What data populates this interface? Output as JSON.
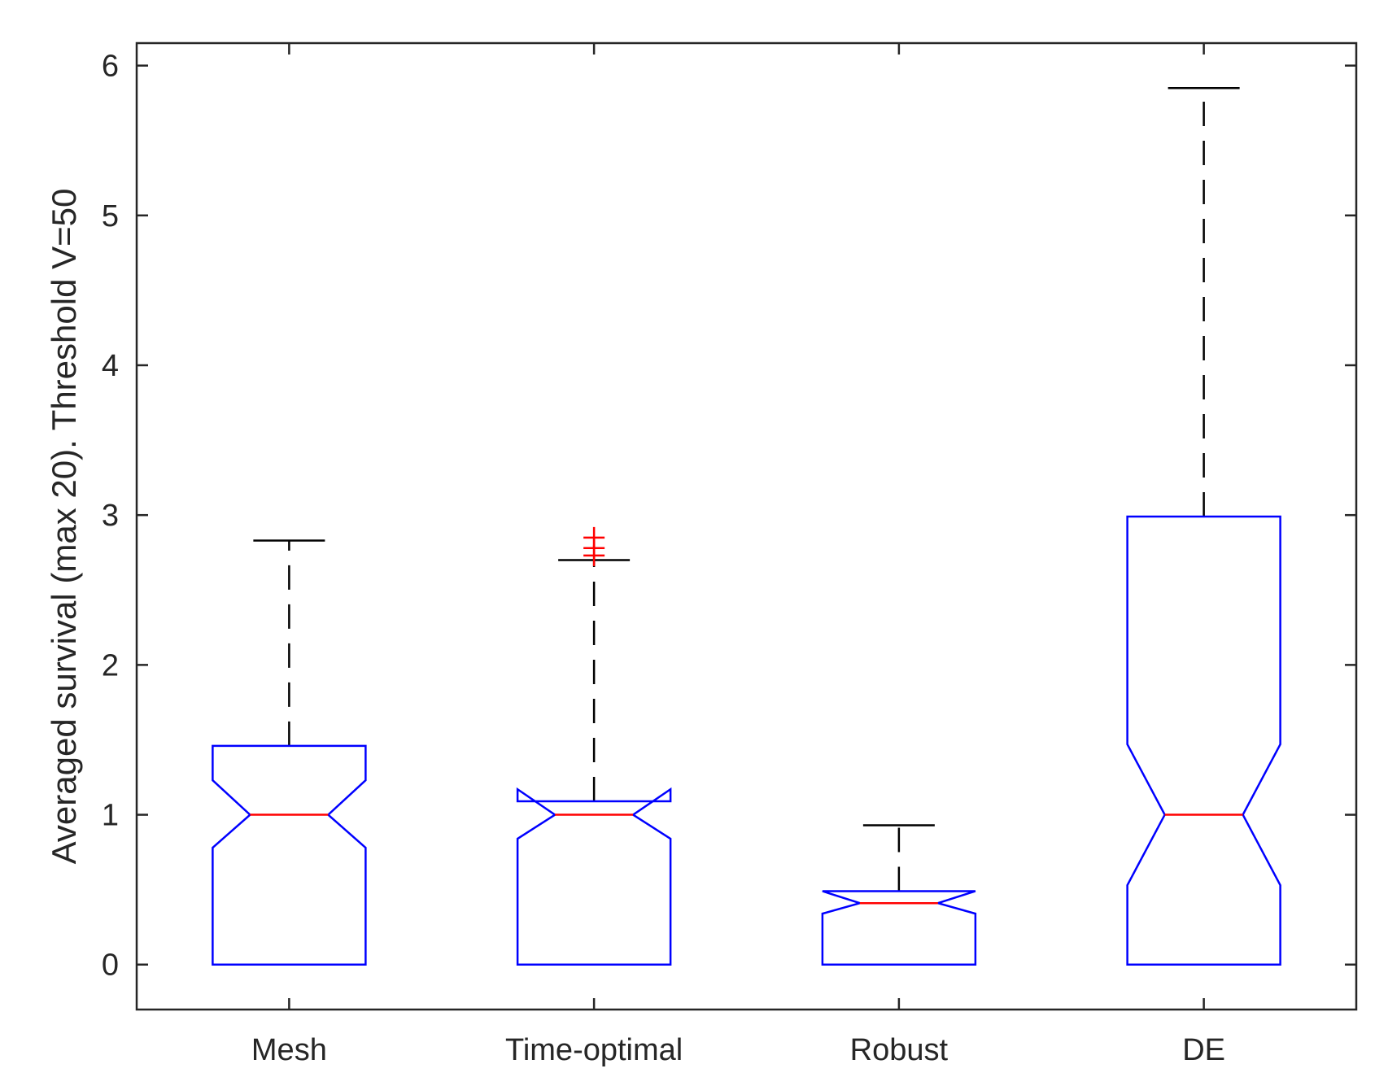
{
  "chart_data": {
    "type": "boxplot",
    "notched": true,
    "title": "",
    "xlabel": "",
    "ylabel": "Averaged survival (max 20). Threshold V=50",
    "ylim": [
      -0.3,
      6.15
    ],
    "yticks": [
      0,
      1,
      2,
      3,
      4,
      5,
      6
    ],
    "ytick_labels": [
      "0",
      "1",
      "2",
      "3",
      "4",
      "5",
      "6"
    ],
    "grid": false,
    "categories": [
      "Mesh",
      "Time-optimal",
      "Robust",
      "DE"
    ],
    "boxes": [
      {
        "category": "Mesh",
        "whisker_low": 0,
        "q1": 0,
        "median": 1.0,
        "q3": 1.46,
        "whisker_high": 2.83,
        "notch_low": 0.78,
        "notch_high": 1.23,
        "outliers": []
      },
      {
        "category": "Time-optimal",
        "whisker_low": 0,
        "q1": 0,
        "median": 1.0,
        "q3": 1.09,
        "whisker_high": 2.7,
        "notch_low": 0.84,
        "notch_high": 1.17,
        "outliers": [
          2.73,
          2.78,
          2.85
        ]
      },
      {
        "category": "Robust",
        "whisker_low": 0,
        "q1": 0,
        "median": 0.41,
        "q3": 0.49,
        "whisker_high": 0.93,
        "notch_low": 0.34,
        "notch_high": 0.49,
        "outliers": []
      },
      {
        "category": "DE",
        "whisker_low": 0,
        "q1": 0,
        "median": 1.0,
        "q3": 2.99,
        "whisker_high": 5.85,
        "notch_low": 0.53,
        "notch_high": 1.47,
        "outliers": []
      }
    ],
    "colors": {
      "box": "#0000ff",
      "median": "#ff0000",
      "whisker": "#000000",
      "outlier": "#ff0000",
      "axes": "#262626"
    }
  }
}
